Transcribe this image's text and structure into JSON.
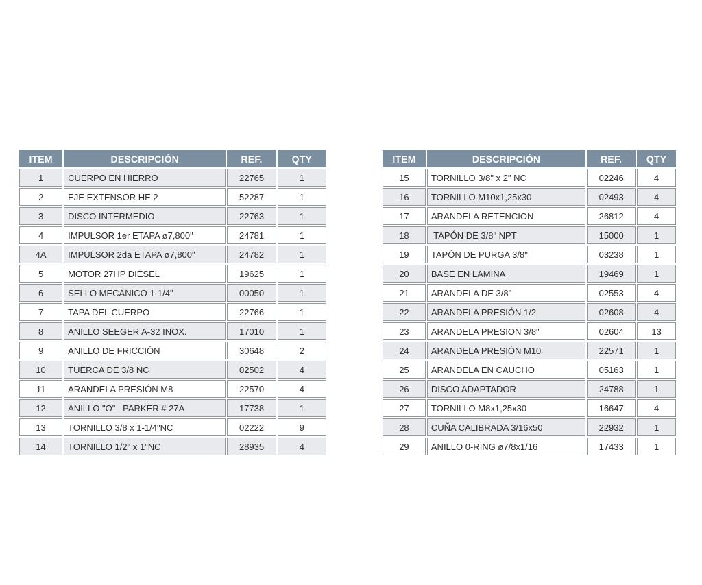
{
  "colors": {
    "header_bg": "#7b8fa0",
    "header_text": "#ffffff",
    "row_alt_bg": "#e8eaed",
    "row_bg": "#ffffff",
    "cell_border": "#8f989f",
    "text": "#2e2e2e"
  },
  "columns": {
    "item": "ITEM",
    "desc": "DESCRIPCIÓN",
    "ref": "REF.",
    "qty": "QTY"
  },
  "tables": [
    {
      "name": "parts-table-left",
      "stripe_offset": 0,
      "rows": [
        {
          "item": "1",
          "desc": "CUERPO EN HIERRO",
          "ref": "22765",
          "qty": "1"
        },
        {
          "item": "2",
          "desc": "EJE EXTENSOR HE 2",
          "ref": "52287",
          "qty": "1"
        },
        {
          "item": "3",
          "desc": "DISCO INTERMEDIO",
          "ref": "22763",
          "qty": "1"
        },
        {
          "item": "4",
          "desc": "IMPULSOR 1er ETAPA ø7,800\"",
          "ref": "24781",
          "qty": "1"
        },
        {
          "item": "4A",
          "desc": "IMPULSOR 2da ETAPA ø7,800\"",
          "ref": "24782",
          "qty": "1"
        },
        {
          "item": "5",
          "desc": "MOTOR 27HP DIÉSEL",
          "ref": "19625",
          "qty": "1"
        },
        {
          "item": "6",
          "desc": "SELLO MECÁNICO 1-1/4\"",
          "ref": "00050",
          "qty": "1"
        },
        {
          "item": "7",
          "desc": "TAPA DEL CUERPO",
          "ref": "22766",
          "qty": "1"
        },
        {
          "item": "8",
          "desc": "ANILLO SEEGER A-32 INOX.",
          "ref": "17010",
          "qty": "1"
        },
        {
          "item": "9",
          "desc": "ANILLO DE FRICCIÓN",
          "ref": "30648",
          "qty": "2"
        },
        {
          "item": "10",
          "desc": "TUERCA DE 3/8 NC",
          "ref": "02502",
          "qty": "4"
        },
        {
          "item": "11",
          "desc": "ARANDELA PRESIÓN M8",
          "ref": "22570",
          "qty": "4"
        },
        {
          "item": "12",
          "desc": "ANILLO \"O\"   PARKER # 27A",
          "ref": "17738",
          "qty": "1"
        },
        {
          "item": "13",
          "desc": "TORNILLO 3/8 x 1-1/4\"NC",
          "ref": "02222",
          "qty": "9"
        },
        {
          "item": "14",
          "desc": "TORNILLO 1/2\" x 1\"NC",
          "ref": "28935",
          "qty": "4"
        }
      ]
    },
    {
      "name": "parts-table-right",
      "stripe_offset": 1,
      "rows": [
        {
          "item": "15",
          "desc": "TORNILLO 3/8\" x 2\" NC",
          "ref": "02246",
          "qty": "4"
        },
        {
          "item": "16",
          "desc": "TORNILLO M10x1,25x30",
          "ref": "02493",
          "qty": "4"
        },
        {
          "item": "17",
          "desc": "ARANDELA RETENCION",
          "ref": "26812",
          "qty": "4"
        },
        {
          "item": "18",
          "desc": " TAPÓN DE 3/8\" NPT",
          "ref": "15000",
          "qty": "1"
        },
        {
          "item": "19",
          "desc": "TAPÓN DE PURGA 3/8\"",
          "ref": "03238",
          "qty": "1"
        },
        {
          "item": "20",
          "desc": "BASE EN LÁMINA",
          "ref": "19469",
          "qty": "1"
        },
        {
          "item": "21",
          "desc": "ARANDELA DE 3/8\"",
          "ref": "02553",
          "qty": "4"
        },
        {
          "item": "22",
          "desc": "ARANDELA PRESIÓN 1/2",
          "ref": "02608",
          "qty": "4"
        },
        {
          "item": "23",
          "desc": "ARANDELA PRESION 3/8\"",
          "ref": "02604",
          "qty": "13"
        },
        {
          "item": "24",
          "desc": "ARANDELA PRESIÓN M10",
          "ref": "22571",
          "qty": "1"
        },
        {
          "item": "25",
          "desc": "ARANDELA EN CAUCHO",
          "ref": "05163",
          "qty": "1"
        },
        {
          "item": "26",
          "desc": "DISCO ADAPTADOR",
          "ref": "24788",
          "qty": "1"
        },
        {
          "item": "27",
          "desc": "TORNILLO M8x1,25x30",
          "ref": "16647",
          "qty": "4"
        },
        {
          "item": "28",
          "desc": "CUÑA CALIBRADA 3/16x50",
          "ref": "22932",
          "qty": "1"
        },
        {
          "item": "29",
          "desc": "ANILLO 0-RING ø7/8x1/16",
          "ref": "17433",
          "qty": "1"
        }
      ]
    }
  ]
}
